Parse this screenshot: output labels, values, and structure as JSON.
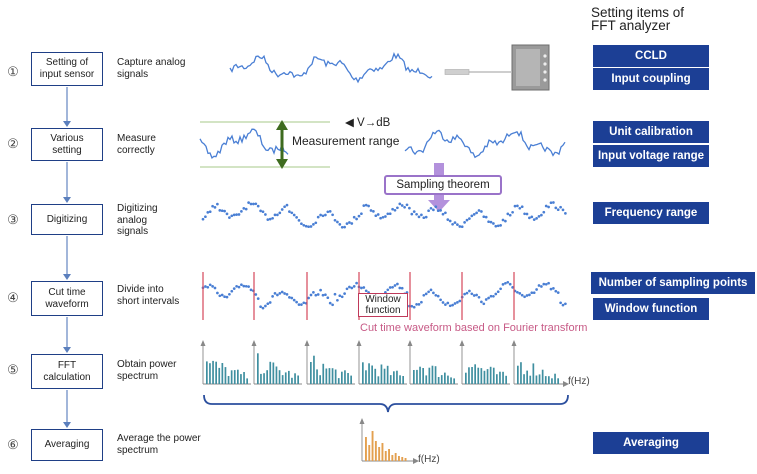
{
  "panel_title": [
    "Setting items of",
    "FFT analyzer"
  ],
  "steps": [
    {
      "num": "①",
      "box": [
        "Setting of",
        "input sensor"
      ],
      "desc": [
        "Capture analog",
        "signals"
      ]
    },
    {
      "num": "②",
      "box": [
        "Various",
        "setting"
      ],
      "desc": [
        "Measure",
        "correctly"
      ]
    },
    {
      "num": "③",
      "box": [
        "Digitizing"
      ],
      "desc": [
        "Digitizing",
        "analog",
        "signals"
      ]
    },
    {
      "num": "④",
      "box": [
        "Cut time",
        "waveform"
      ],
      "desc": [
        "Divide into",
        "short intervals"
      ]
    },
    {
      "num": "⑤",
      "box": [
        "FFT",
        "calculation"
      ],
      "desc": [
        "Obtain power",
        "spectrum"
      ]
    },
    {
      "num": "⑥",
      "box": [
        "Averaging"
      ],
      "desc": [
        "Average the power",
        "spectrum"
      ]
    }
  ],
  "settings": {
    "ccld": "CCLD",
    "input_coupling": "Input coupling",
    "unit_calibration": "Unit calibration",
    "input_voltage_range": "Input voltage range",
    "frequency_range": "Frequency range",
    "sampling_points": "Number of sampling points",
    "window_function": "Window function",
    "averaging": "Averaging"
  },
  "annotations": {
    "v_db": "◀ V→dB",
    "measurement_range": "Measurement range",
    "sampling_theorem": "Sampling theorem",
    "window_box": [
      "Window",
      "function"
    ],
    "cut_note": "Cut time waveform based on Fourier transform",
    "fhz_spectrum": "f(Hz)",
    "fhz_avg": "f(Hz)"
  },
  "colors": {
    "step_border": "#1f3f86",
    "setting_button": "#1c3f95",
    "signal": "#4a7fd4",
    "cut_line": "#d4475a",
    "measurement_arrow": "#3e6b1f",
    "range_line": "#a7c88a",
    "sampling_box": "#9a73c9",
    "spectrum_bar": "#3f8fa0",
    "averaged_bar": "#e3a04f"
  },
  "icons": [
    "sensor-device-icon",
    "step-arrow-icon",
    "frequency-axis-arrow-icon"
  ]
}
